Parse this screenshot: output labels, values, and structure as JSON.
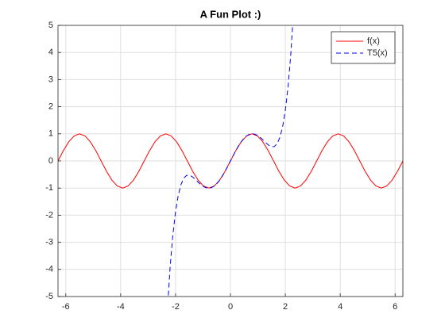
{
  "chart_data": {
    "type": "line",
    "title": "A Fun Plot :)",
    "xlim": [
      -6.2832,
      6.2832
    ],
    "xticks": [
      -6,
      -4,
      -2,
      0,
      2,
      4,
      6
    ],
    "ylim": [
      -5,
      5
    ],
    "yticks": [
      -5,
      -4,
      -3,
      -2,
      -1,
      0,
      1,
      2,
      3,
      4,
      5
    ],
    "grid": true,
    "legend": "northeast",
    "series": [
      {
        "name": "f(x)",
        "color": "#ff0000",
        "style": "solid",
        "x": [
          -6.283,
          -6.087,
          -5.89,
          -5.694,
          -5.498,
          -5.301,
          -5.105,
          -4.909,
          -4.712,
          -4.516,
          -4.32,
          -4.123,
          -3.927,
          -3.731,
          -3.534,
          -3.338,
          -3.142,
          -2.945,
          -2.749,
          -2.553,
          -2.356,
          -2.16,
          -1.963,
          -1.767,
          -1.571,
          -1.374,
          -1.178,
          -0.982,
          -0.785,
          -0.589,
          -0.393,
          -0.196,
          0,
          0.196,
          0.393,
          0.589,
          0.785,
          0.982,
          1.178,
          1.374,
          1.571,
          1.767,
          1.963,
          2.16,
          2.356,
          2.553,
          2.749,
          2.945,
          3.142,
          3.338,
          3.534,
          3.731,
          3.927,
          4.123,
          4.32,
          4.516,
          4.712,
          4.909,
          5.105,
          5.301,
          5.498,
          5.694,
          5.89,
          6.087,
          6.283
        ],
        "values": [
          0,
          0.383,
          0.707,
          0.924,
          1,
          0.924,
          0.707,
          0.383,
          0,
          -0.383,
          -0.707,
          -0.924,
          -1,
          -0.924,
          -0.707,
          -0.383,
          0,
          0.383,
          0.707,
          0.924,
          1,
          0.924,
          0.707,
          0.383,
          0,
          -0.383,
          -0.707,
          -0.924,
          -1,
          -0.924,
          -0.707,
          -0.383,
          0,
          0.383,
          0.707,
          0.924,
          1,
          0.924,
          0.707,
          0.383,
          0,
          -0.383,
          -0.707,
          -0.924,
          -1,
          -0.924,
          -0.707,
          -0.383,
          0,
          0.383,
          0.707,
          0.924,
          1,
          0.924,
          0.707,
          0.383,
          0,
          -0.383,
          -0.707,
          -0.924,
          -1,
          -0.924,
          -0.707,
          -0.383,
          0
        ]
      },
      {
        "name": "T5(x)",
        "color": "#0000ff",
        "style": "dashed",
        "x": [
          -2.3,
          -2.2,
          -2.1,
          -2.0,
          -1.9,
          -1.8,
          -1.7,
          -1.6,
          -1.5,
          -1.4,
          -1.3,
          -1.2,
          -1.1,
          -1.0,
          -0.9,
          -0.8,
          -0.7,
          -0.6,
          -0.5,
          -0.4,
          -0.3,
          -0.2,
          -0.1,
          0,
          0.1,
          0.2,
          0.3,
          0.4,
          0.5,
          0.6,
          0.7,
          0.8,
          0.9,
          1.0,
          1.1,
          1.2,
          1.3,
          1.4,
          1.5,
          1.6,
          1.7,
          1.8,
          1.9,
          2.0,
          2.1,
          2.2,
          2.3
        ],
        "values": [
          -5.541,
          -3.9458,
          -2.7431,
          -1.8667,
          -1.2577,
          -0.8629,
          -0.6356,
          -0.5349,
          -0.525,
          -0.5755,
          -0.6608,
          -0.7596,
          -0.8548,
          -0.9333,
          -0.9855,
          -1.0047,
          -0.9875,
          -0.9327,
          -0.8417,
          -0.7174,
          -0.5646,
          -0.3894,
          -0.1987,
          0,
          0.1987,
          0.3894,
          0.5646,
          0.7174,
          0.8417,
          0.9327,
          0.9875,
          1.0047,
          0.9855,
          0.9333,
          0.8548,
          0.7596,
          0.6608,
          0.5755,
          0.525,
          0.5349,
          0.6356,
          0.8629,
          1.2577,
          1.8667,
          2.7431,
          3.9458,
          5.541
        ]
      }
    ]
  }
}
